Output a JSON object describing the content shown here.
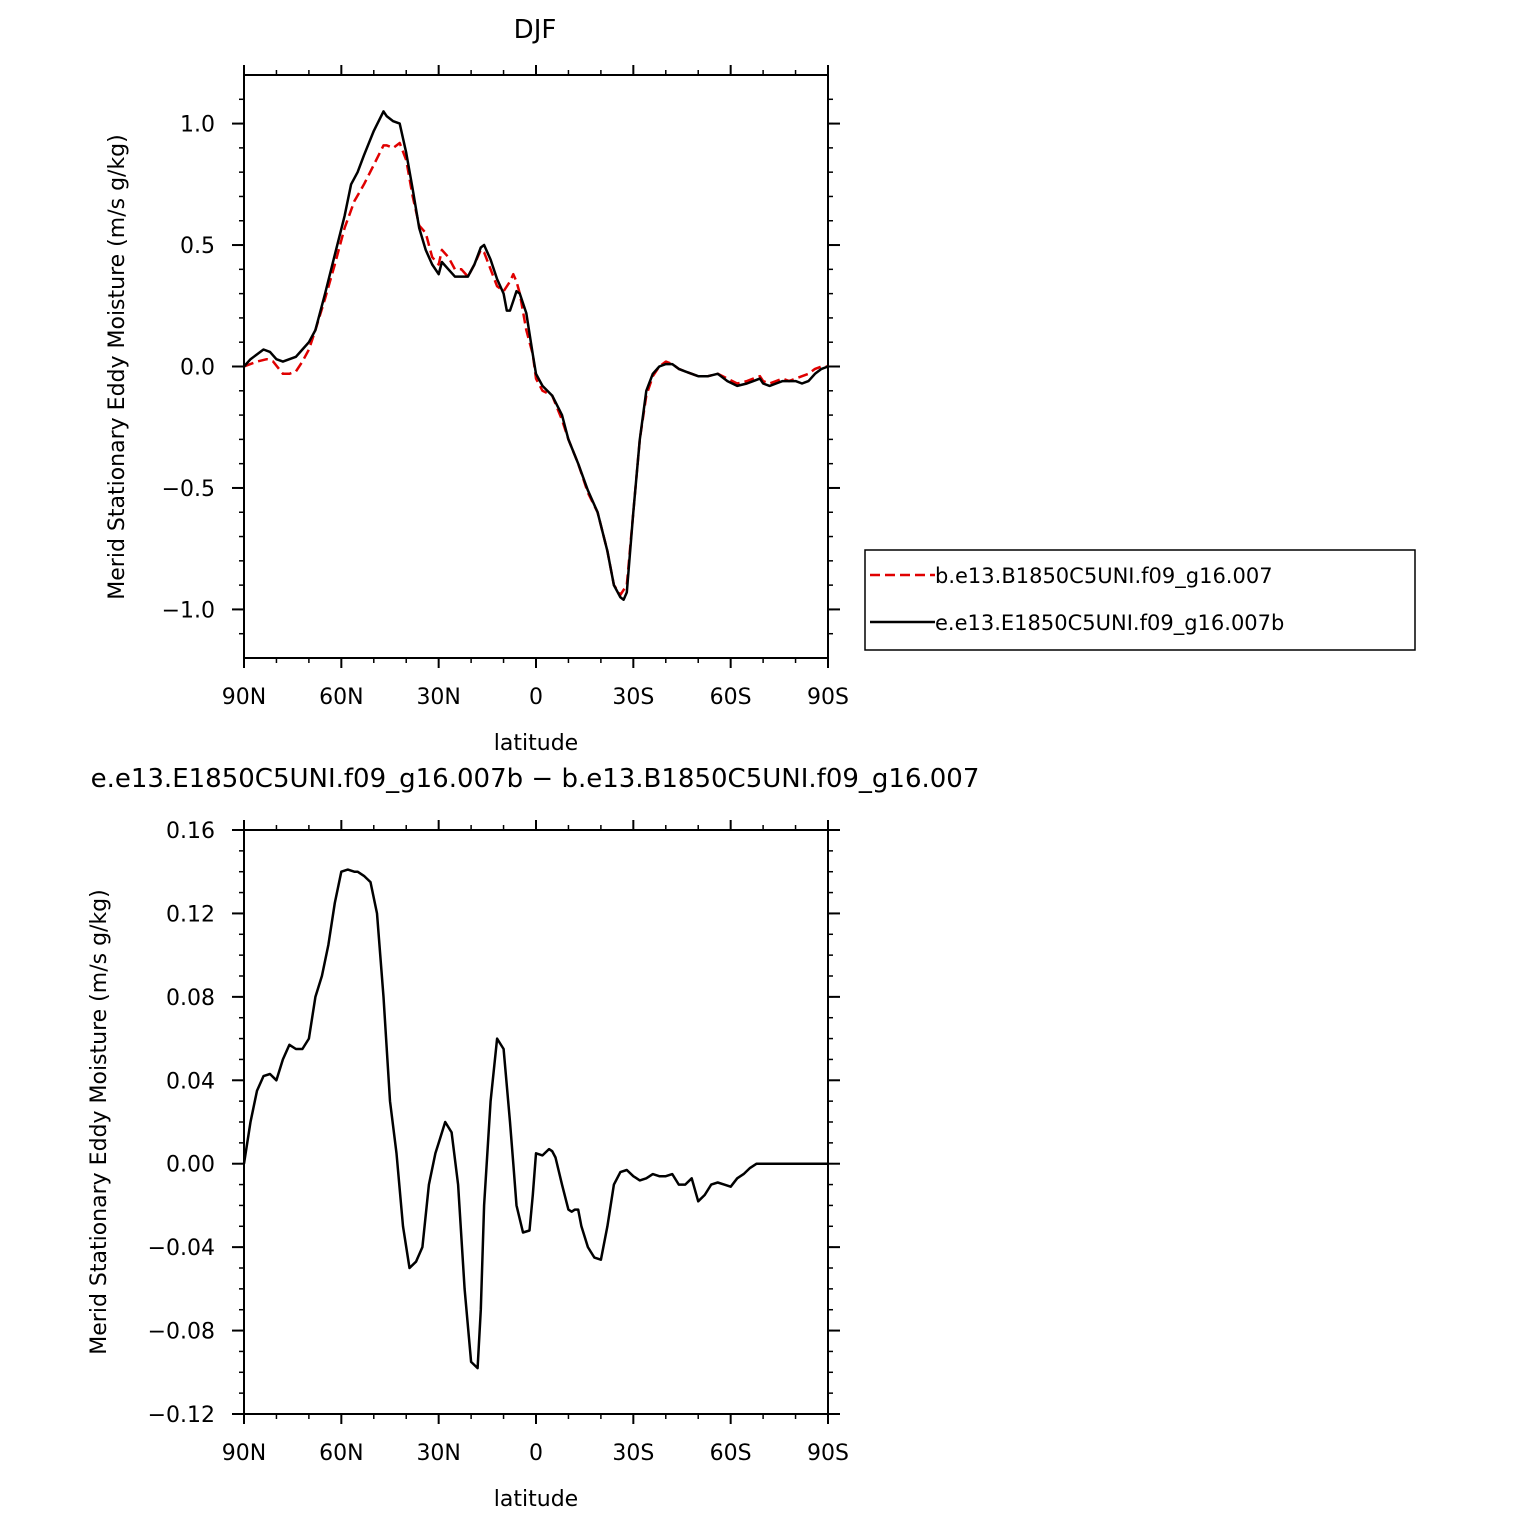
{
  "chart_data": [
    {
      "type": "line",
      "title": "DJF",
      "xlabel": "latitude",
      "ylabel": "Merid Stationary Eddy Moisture (m/s g/kg)",
      "xlim": [
        90,
        -90
      ],
      "ylim": [
        -1.2,
        1.2
      ],
      "xticks": [
        90,
        60,
        30,
        0,
        -30,
        -60,
        -90
      ],
      "xtick_labels": [
        "90N",
        "60N",
        "30N",
        "0",
        "30S",
        "60S",
        "90S"
      ],
      "yticks": [
        1.0,
        0.5,
        0.0,
        -0.5,
        -1.0
      ],
      "ytick_labels": [
        "1.0",
        "0.5",
        "0.0",
        "−0.5",
        "−1.0"
      ],
      "legend": "right",
      "series": [
        {
          "name": "b.e13.B1850C5UNI.f09_g16.007",
          "color": "#e00000",
          "style": "dashed",
          "x": [
            90,
            86,
            83,
            81,
            78,
            76,
            74,
            72,
            70,
            68,
            65,
            62,
            59,
            56,
            53,
            50,
            47,
            46,
            44,
            42,
            40,
            38,
            36,
            34,
            32,
            30,
            29,
            27,
            25,
            23,
            21,
            19,
            17,
            16,
            14,
            12,
            10,
            8,
            7,
            6,
            5,
            3,
            1,
            0,
            -2,
            -5,
            -8,
            -10,
            -13,
            -16,
            -19,
            -22,
            -24,
            -26,
            -28,
            -30,
            -32,
            -34,
            -36,
            -38,
            -40,
            -42,
            -44,
            -46,
            -48,
            -50,
            -53,
            -56,
            -59,
            -62,
            -65,
            -67,
            -69,
            -70,
            -72,
            -74,
            -76,
            -78,
            -80,
            -82,
            -84,
            -86,
            -88,
            -90
          ],
          "y": [
            0.0,
            0.02,
            0.03,
            0.02,
            -0.03,
            -0.03,
            -0.02,
            0.02,
            0.07,
            0.15,
            0.28,
            0.42,
            0.57,
            0.68,
            0.75,
            0.83,
            0.91,
            0.91,
            0.9,
            0.92,
            0.85,
            0.7,
            0.58,
            0.55,
            0.45,
            0.42,
            0.48,
            0.45,
            0.4,
            0.4,
            0.37,
            0.42,
            0.48,
            0.47,
            0.4,
            0.33,
            0.31,
            0.35,
            0.38,
            0.35,
            0.3,
            0.15,
            0.05,
            -0.05,
            -0.1,
            -0.12,
            -0.22,
            -0.3,
            -0.4,
            -0.52,
            -0.6,
            -0.76,
            -0.9,
            -0.94,
            -0.9,
            -0.6,
            -0.3,
            -0.12,
            -0.04,
            0.0,
            0.02,
            0.01,
            -0.01,
            -0.02,
            -0.03,
            -0.04,
            -0.04,
            -0.03,
            -0.05,
            -0.07,
            -0.06,
            -0.05,
            -0.04,
            -0.06,
            -0.07,
            -0.06,
            -0.05,
            -0.06,
            -0.05,
            -0.04,
            -0.03,
            -0.01,
            0.0,
            0.0
          ]
        },
        {
          "name": "e.e13.E1850C5UNI.f09_g16.007b",
          "color": "#000000",
          "style": "solid",
          "x": [
            90,
            88,
            86,
            84,
            82,
            80,
            78,
            76,
            74,
            72,
            70,
            68,
            65,
            62,
            59,
            57,
            55,
            53,
            50,
            47,
            46,
            44,
            42,
            40,
            38,
            36,
            34,
            32,
            30,
            29,
            27,
            25,
            23,
            21,
            19,
            17,
            16,
            14,
            12,
            10,
            9,
            8,
            7,
            6,
            5,
            3,
            1,
            0,
            -2,
            -5,
            -8,
            -10,
            -13,
            -16,
            -19,
            -22,
            -24,
            -26,
            -27,
            -28,
            -30,
            -32,
            -34,
            -36,
            -38,
            -40,
            -42,
            -44,
            -46,
            -48,
            -50,
            -53,
            -56,
            -59,
            -62,
            -65,
            -67,
            -69,
            -70,
            -72,
            -74,
            -76,
            -78,
            -80,
            -82,
            -84,
            -86,
            -88,
            -90
          ],
          "y": [
            0.0,
            0.03,
            0.05,
            0.07,
            0.06,
            0.03,
            0.02,
            0.03,
            0.04,
            0.07,
            0.1,
            0.15,
            0.3,
            0.46,
            0.62,
            0.75,
            0.8,
            0.87,
            0.97,
            1.05,
            1.03,
            1.01,
            1.0,
            0.88,
            0.73,
            0.57,
            0.48,
            0.42,
            0.38,
            0.43,
            0.4,
            0.37,
            0.37,
            0.37,
            0.42,
            0.49,
            0.5,
            0.44,
            0.36,
            0.3,
            0.23,
            0.23,
            0.27,
            0.31,
            0.3,
            0.22,
            0.05,
            -0.03,
            -0.08,
            -0.12,
            -0.2,
            -0.3,
            -0.4,
            -0.51,
            -0.6,
            -0.76,
            -0.9,
            -0.95,
            -0.96,
            -0.93,
            -0.6,
            -0.3,
            -0.1,
            -0.03,
            0.0,
            0.01,
            0.01,
            -0.01,
            -0.02,
            -0.03,
            -0.04,
            -0.04,
            -0.03,
            -0.06,
            -0.08,
            -0.07,
            -0.06,
            -0.05,
            -0.07,
            -0.08,
            -0.07,
            -0.06,
            -0.06,
            -0.06,
            -0.07,
            -0.06,
            -0.03,
            -0.01,
            0.0
          ]
        }
      ]
    },
    {
      "type": "line",
      "title": "e.e13.E1850C5UNI.f09_g16.007b − b.e13.B1850C5UNI.f09_g16.007",
      "xlabel": "latitude",
      "ylabel": "Merid Stationary Eddy Moisture (m/s g/kg)",
      "xlim": [
        90,
        -90
      ],
      "ylim": [
        -0.12,
        0.16
      ],
      "xticks": [
        90,
        60,
        30,
        0,
        -30,
        -60,
        -90
      ],
      "xtick_labels": [
        "90N",
        "60N",
        "30N",
        "0",
        "30S",
        "60S",
        "90S"
      ],
      "yticks": [
        0.16,
        0.12,
        0.08,
        0.04,
        0.0,
        -0.04,
        -0.08,
        -0.12
      ],
      "ytick_labels": [
        "0.16",
        "0.12",
        "0.08",
        "0.04",
        "0.00",
        "−0.04",
        "−0.08",
        "−0.12"
      ],
      "series": [
        {
          "color": "#000000",
          "style": "solid",
          "x": [
            90,
            88,
            86,
            84,
            82,
            80,
            78,
            76,
            74,
            72,
            70,
            68,
            66,
            64,
            62,
            60,
            58,
            56,
            55,
            53,
            51,
            49,
            47,
            45,
            43,
            41,
            39,
            37,
            35,
            33,
            31,
            30,
            28,
            26,
            24,
            22,
            20,
            18,
            17,
            16,
            14,
            12,
            10,
            8,
            7,
            6,
            4,
            2,
            1,
            0,
            -2,
            -4,
            -5,
            -6,
            -8,
            -10,
            -11,
            -12,
            -13,
            -14,
            -16,
            -18,
            -20,
            -22,
            -24,
            -26,
            -28,
            -30,
            -32,
            -34,
            -35,
            -36,
            -38,
            -40,
            -42,
            -44,
            -46,
            -48,
            -50,
            -52,
            -54,
            -56,
            -58,
            -60,
            -62,
            -64,
            -66,
            -68,
            -69,
            -70,
            -72,
            -74,
            -76,
            -78,
            -80,
            -82,
            -84,
            -86,
            -88,
            -90
          ],
          "y": [
            0.0,
            0.02,
            0.035,
            0.042,
            0.043,
            0.04,
            0.05,
            0.057,
            0.055,
            0.055,
            0.06,
            0.08,
            0.09,
            0.105,
            0.125,
            0.14,
            0.141,
            0.14,
            0.14,
            0.138,
            0.135,
            0.12,
            0.08,
            0.03,
            0.005,
            -0.03,
            -0.05,
            -0.047,
            -0.04,
            -0.01,
            0.005,
            0.01,
            0.02,
            0.015,
            -0.01,
            -0.06,
            -0.095,
            -0.098,
            -0.07,
            -0.02,
            0.03,
            0.06,
            0.055,
            0.02,
            0.0,
            -0.02,
            -0.033,
            -0.032,
            -0.015,
            0.005,
            0.004,
            0.007,
            0.006,
            0.003,
            -0.01,
            -0.022,
            -0.023,
            -0.022,
            -0.022,
            -0.03,
            -0.04,
            -0.045,
            -0.046,
            -0.03,
            -0.01,
            -0.004,
            -0.003,
            -0.006,
            -0.008,
            -0.007,
            -0.006,
            -0.005,
            -0.006,
            -0.006,
            -0.005,
            -0.01,
            -0.01,
            -0.007,
            -0.018,
            -0.015,
            -0.01,
            -0.009,
            -0.01,
            -0.011,
            -0.007,
            -0.005,
            -0.002,
            0.0,
            0.0,
            0.0,
            0.0,
            0.0,
            0.0,
            0.0,
            0.0,
            0.0,
            0.0,
            0.0,
            0.0,
            0.0
          ]
        }
      ]
    }
  ]
}
